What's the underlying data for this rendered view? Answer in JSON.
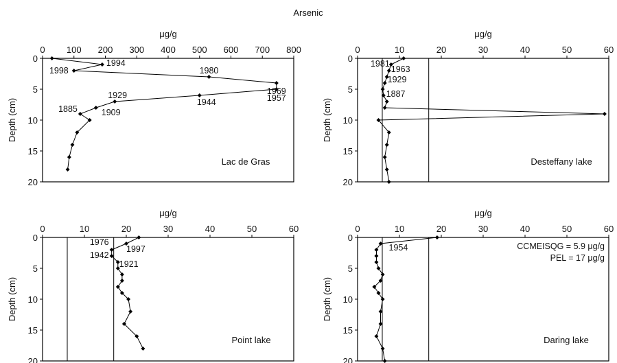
{
  "chart_data": {
    "title": "Arsenic",
    "panels": [
      {
        "type": "line",
        "name": "Lac de Gras",
        "xlabel": "μg/g",
        "ylabel": "Depth (cm)",
        "xlim": [
          0,
          800
        ],
        "xticks": [
          0,
          100,
          200,
          300,
          400,
          500,
          600,
          700,
          800
        ],
        "ylim": [
          0,
          20
        ],
        "yticks": [
          0,
          5,
          10,
          15,
          20
        ],
        "reference_lines": [
          0
        ],
        "points": [
          {
            "x": 30,
            "y": 0
          },
          {
            "x": 190,
            "y": 1
          },
          {
            "x": 100,
            "y": 2
          },
          {
            "x": 530,
            "y": 3
          },
          {
            "x": 745,
            "y": 4
          },
          {
            "x": 745,
            "y": 5
          },
          {
            "x": 500,
            "y": 6
          },
          {
            "x": 230,
            "y": 7
          },
          {
            "x": 170,
            "y": 8
          },
          {
            "x": 120,
            "y": 9
          },
          {
            "x": 150,
            "y": 10
          },
          {
            "x": 110,
            "y": 12
          },
          {
            "x": 95,
            "y": 14
          },
          {
            "x": 85,
            "y": 16
          },
          {
            "x": 80,
            "y": 18
          }
        ],
        "annotations": [
          {
            "text": "1994",
            "x": 190,
            "y": 1
          },
          {
            "text": "1998",
            "x": 100,
            "y": 2
          },
          {
            "text": "1980",
            "x": 530,
            "y": 3
          },
          {
            "text": "1969",
            "x": 745,
            "y": 4
          },
          {
            "text": "1957",
            "x": 745,
            "y": 5
          },
          {
            "text": "1929",
            "x": 230,
            "y": 7
          },
          {
            "text": "1944",
            "x": 500,
            "y": 6
          },
          {
            "text": "1885",
            "x": 120,
            "y": 9
          },
          {
            "text": "1909",
            "x": 170,
            "y": 8
          }
        ]
      },
      {
        "type": "line",
        "name": "Desteffany lake",
        "xlabel": "μg/g",
        "ylabel": "Depth (cm)",
        "xlim": [
          0,
          60
        ],
        "xticks": [
          0,
          10,
          20,
          30,
          40,
          50,
          60
        ],
        "ylim": [
          0,
          20
        ],
        "yticks": [
          0,
          5,
          10,
          15,
          20
        ],
        "reference_lines": [
          5.9,
          17
        ],
        "points": [
          {
            "x": 11,
            "y": 0
          },
          {
            "x": 8,
            "y": 1
          },
          {
            "x": 7.5,
            "y": 2
          },
          {
            "x": 7,
            "y": 3
          },
          {
            "x": 6.5,
            "y": 4
          },
          {
            "x": 6,
            "y": 5
          },
          {
            "x": 6.2,
            "y": 6
          },
          {
            "x": 7,
            "y": 7
          },
          {
            "x": 6.5,
            "y": 8
          },
          {
            "x": 59,
            "y": 9
          },
          {
            "x": 5,
            "y": 10
          },
          {
            "x": 7.5,
            "y": 12
          },
          {
            "x": 7,
            "y": 14
          },
          {
            "x": 6.5,
            "y": 16
          },
          {
            "x": 7,
            "y": 18
          },
          {
            "x": 7.5,
            "y": 20
          }
        ],
        "annotations": [
          {
            "text": "1981",
            "x": 8,
            "y": 1
          },
          {
            "text": "1963",
            "x": 7.5,
            "y": 2
          },
          {
            "text": "1929",
            "x": 6.5,
            "y": 4
          },
          {
            "text": "1887",
            "x": 7,
            "y": 6
          }
        ]
      },
      {
        "type": "line",
        "name": "Point lake",
        "xlabel": "μg/g",
        "ylabel": "Depth (cm)",
        "xlim": [
          0,
          60
        ],
        "xticks": [
          0,
          10,
          20,
          30,
          40,
          50,
          60
        ],
        "ylim": [
          0,
          20
        ],
        "yticks": [
          0,
          5,
          10,
          15,
          20
        ],
        "reference_lines": [
          5.9,
          17
        ],
        "points": [
          {
            "x": 23,
            "y": 0
          },
          {
            "x": 20,
            "y": 1
          },
          {
            "x": 16.5,
            "y": 2
          },
          {
            "x": 16.5,
            "y": 3
          },
          {
            "x": 18,
            "y": 4
          },
          {
            "x": 18,
            "y": 5
          },
          {
            "x": 19,
            "y": 6
          },
          {
            "x": 19,
            "y": 7
          },
          {
            "x": 18,
            "y": 8
          },
          {
            "x": 19,
            "y": 9
          },
          {
            "x": 20.5,
            "y": 10
          },
          {
            "x": 21,
            "y": 12
          },
          {
            "x": 19.5,
            "y": 14
          },
          {
            "x": 22.5,
            "y": 16
          },
          {
            "x": 24,
            "y": 18
          }
        ],
        "annotations": [
          {
            "text": "1976",
            "x": 16.5,
            "y": 1
          },
          {
            "text": "1997",
            "x": 20,
            "y": 1
          },
          {
            "text": "1942",
            "x": 16.5,
            "y": 3
          },
          {
            "text": "1921",
            "x": 18,
            "y": 4
          }
        ]
      },
      {
        "type": "line",
        "name": "Daring lake",
        "xlabel": "μg/g",
        "ylabel": "Depth (cm)",
        "xlim": [
          0,
          60
        ],
        "xticks": [
          0,
          10,
          20,
          30,
          40,
          50,
          60
        ],
        "ylim": [
          0,
          20
        ],
        "yticks": [
          0,
          5,
          10,
          15,
          20
        ],
        "reference_lines": [
          5.9,
          17
        ],
        "legend_text": [
          "CCMEISQG = 5.9 μg/g",
          "PEL = 17 μg/g"
        ],
        "points": [
          {
            "x": 19,
            "y": 0
          },
          {
            "x": 5.5,
            "y": 1
          },
          {
            "x": 4.5,
            "y": 2
          },
          {
            "x": 4.5,
            "y": 3
          },
          {
            "x": 4.5,
            "y": 4
          },
          {
            "x": 5,
            "y": 5
          },
          {
            "x": 6,
            "y": 6
          },
          {
            "x": 5.5,
            "y": 7
          },
          {
            "x": 4,
            "y": 8
          },
          {
            "x": 5,
            "y": 9
          },
          {
            "x": 6,
            "y": 10
          },
          {
            "x": 5.5,
            "y": 12
          },
          {
            "x": 5.5,
            "y": 14
          },
          {
            "x": 4.5,
            "y": 16
          },
          {
            "x": 6,
            "y": 18
          },
          {
            "x": 6.5,
            "y": 20
          }
        ],
        "annotations": [
          {
            "text": "1954",
            "x": 5.5,
            "y": 1
          }
        ]
      }
    ]
  }
}
